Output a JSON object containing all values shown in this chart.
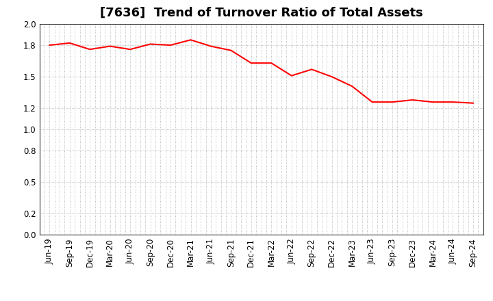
{
  "title": "[7636]  Trend of Turnover Ratio of Total Assets",
  "ylim": [
    0.0,
    2.0
  ],
  "yticks": [
    0.0,
    0.2,
    0.5,
    0.8,
    1.0,
    1.2,
    1.5,
    1.8,
    2.0
  ],
  "line_color": "#FF0000",
  "line_width": 1.5,
  "bg_color": "#FFFFFF",
  "plot_bg_color": "#FFFFFF",
  "labels": [
    "Jun-19",
    "Sep-19",
    "Dec-19",
    "Mar-20",
    "Jun-20",
    "Sep-20",
    "Dec-20",
    "Mar-21",
    "Jun-21",
    "Sep-21",
    "Dec-21",
    "Mar-22",
    "Jun-22",
    "Sep-22",
    "Dec-22",
    "Mar-23",
    "Jun-23",
    "Sep-23",
    "Dec-23",
    "Mar-24",
    "Jun-24",
    "Sep-24"
  ],
  "values": [
    1.8,
    1.82,
    1.76,
    1.79,
    1.76,
    1.81,
    1.8,
    1.85,
    1.79,
    1.75,
    1.63,
    1.63,
    1.51,
    1.57,
    1.5,
    1.41,
    1.26,
    1.26,
    1.28,
    1.26,
    1.26,
    1.25
  ],
  "grid_color": "#AAAAAA",
  "title_fontsize": 13,
  "tick_fontsize": 8.5
}
